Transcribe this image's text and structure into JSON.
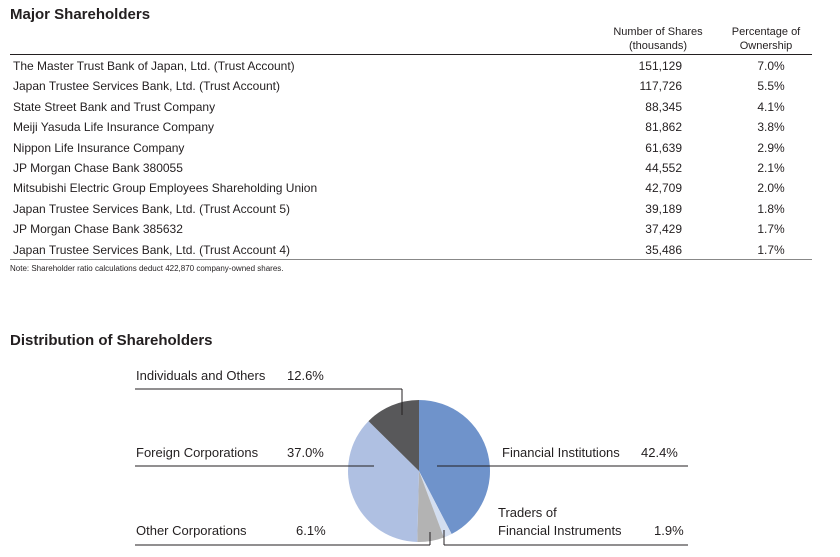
{
  "major": {
    "title": "Major Shareholders",
    "col_shares": [
      "Number of Shares",
      "(thousands)"
    ],
    "col_pct": [
      "Percentage of",
      "Ownership"
    ],
    "rows": [
      {
        "name": "The Master Trust Bank of Japan, Ltd. (Trust Account)",
        "shares": "151,129",
        "pct": "7.0%"
      },
      {
        "name": "Japan Trustee Services Bank, Ltd. (Trust Account)",
        "shares": "117,726",
        "pct": "5.5%"
      },
      {
        "name": "State Street Bank and Trust Company",
        "shares": "88,345",
        "pct": "4.1%"
      },
      {
        "name": "Meiji Yasuda Life Insurance Company",
        "shares": "81,862",
        "pct": "3.8%"
      },
      {
        "name": "Nippon Life Insurance Company",
        "shares": "61,639",
        "pct": "2.9%"
      },
      {
        "name": "JP Morgan Chase Bank 380055",
        "shares": "44,552",
        "pct": "2.1%"
      },
      {
        "name": "Mitsubishi Electric Group Employees Shareholding Union",
        "shares": "42,709",
        "pct": "2.0%"
      },
      {
        "name": "Japan Trustee Services Bank, Ltd. (Trust Account 5)",
        "shares": "39,189",
        "pct": "1.8%"
      },
      {
        "name": "JP Morgan Chase Bank 385632",
        "shares": "37,429",
        "pct": "1.7%"
      },
      {
        "name": "Japan Trustee Services Bank, Ltd. (Trust Account 4)",
        "shares": "35,486",
        "pct": "1.7%"
      }
    ],
    "note": "Note: Shareholder ratio calculations deduct 422,870 company-owned shares."
  },
  "chart_data": {
    "type": "pie",
    "title": "Distribution of Shareholders",
    "slices": [
      {
        "label": "Financial Institutions",
        "label2": "",
        "value": 42.4,
        "text": "42.4%",
        "color": "#6f93cb"
      },
      {
        "label": "Traders of",
        "label2": "Financial Instruments",
        "value": 1.9,
        "text": "1.9%",
        "color": "#d3def0"
      },
      {
        "label": "Other Corporations",
        "label2": "",
        "value": 6.1,
        "text": "6.1%",
        "color": "#b3b3b3"
      },
      {
        "label": "Foreign Corporations",
        "label2": "",
        "value": 37.0,
        "text": "37.0%",
        "color": "#afc0e2"
      },
      {
        "label": "Individuals and Others",
        "label2": "",
        "value": 12.6,
        "text": "12.6%",
        "color": "#58585a"
      }
    ]
  }
}
